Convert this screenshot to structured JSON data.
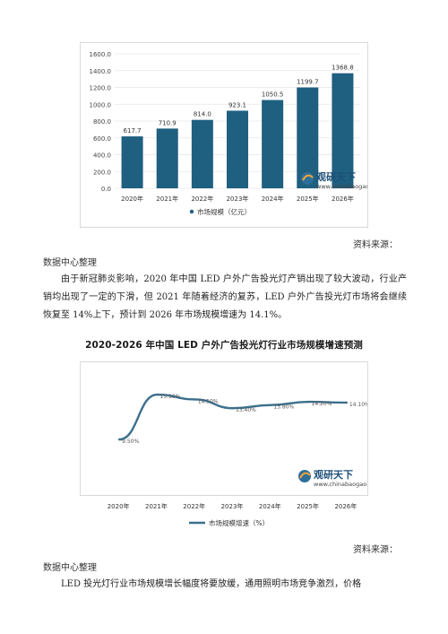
{
  "page": {
    "source_label_1": "资料来源：",
    "source_org_1": "数据中心整理",
    "paragraph_1": "由于新冠肺炎影响，2020 年中国 LED 户外广告投光灯产销出现了较大波动，行业产销均出现了一定的下滑，但 2021 年随着经济的复苏，LED 户外广告投光灯市场将会继续恢复至 14%上下，预计到 2026 年市场规模增速为 14.1%。",
    "chart2_heading": "2020-2026 年中国 LED 户外广告投光灯行业市场规模增速预测",
    "source_label_2": "资料来源：",
    "source_org_2": "数据中心整理",
    "paragraph_2": "LED 投光灯行业市场规模增长幅度将要放缓，通用照明市场竞争激烈，价格"
  },
  "watermark": {
    "brand": "观研天下",
    "url": "www.chinabaogao.com"
  },
  "colors": {
    "bar": "#1f5f80",
    "line": "#3b6f8c",
    "grid": "#e6e6e6"
  },
  "chart_data": [
    {
      "type": "bar",
      "categories": [
        "2020年",
        "2021年",
        "2022年",
        "2023年",
        "2024年",
        "2025年",
        "2026年"
      ],
      "series": [
        {
          "name": "市场规模（亿元）",
          "values": [
            617.7,
            710.9,
            814.0,
            923.1,
            1050.5,
            1199.7,
            1368.8
          ]
        }
      ],
      "data_labels": [
        "617.7",
        "710.9",
        "814.0",
        "923.1",
        "1050.5",
        "1199.7",
        "1368.8"
      ],
      "ylim": [
        0,
        1600
      ],
      "yticks": [
        "0.0",
        "200.0",
        "400.0",
        "600.0",
        "800.0",
        "1000.0",
        "1200.0",
        "1400.0",
        "1600.0"
      ],
      "grid": true,
      "legend": "bottom"
    },
    {
      "type": "line",
      "categories": [
        "2020年",
        "2021年",
        "2022年",
        "2023年",
        "2024年",
        "2025年",
        "2026年"
      ],
      "series": [
        {
          "name": "市场规模增速（%）",
          "values": [
            9.5,
            15.1,
            14.5,
            13.4,
            13.8,
            14.2,
            14.1
          ]
        }
      ],
      "data_labels": [
        "9.50%",
        "15.10%",
        "14.50%",
        "13.40%",
        "13.80%",
        "14.20%",
        "14.10%"
      ],
      "grid": false,
      "legend": "bottom"
    }
  ]
}
